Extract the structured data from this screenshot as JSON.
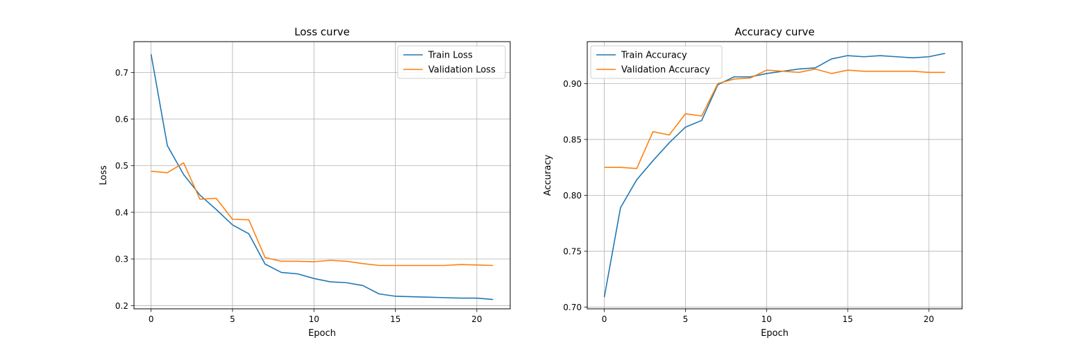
{
  "chart_data": [
    {
      "type": "line",
      "title": "Loss curve",
      "xlabel": "Epoch",
      "ylabel": "Loss",
      "x": [
        0,
        1,
        2,
        3,
        4,
        5,
        6,
        7,
        8,
        9,
        10,
        11,
        12,
        13,
        14,
        15,
        16,
        17,
        18,
        19,
        20,
        21
      ],
      "xlim": [
        -1.05,
        22.05
      ],
      "ylim": [
        0.193,
        0.766
      ],
      "xticks": [
        0,
        5,
        10,
        15,
        20
      ],
      "yticks": [
        0.2,
        0.3,
        0.4,
        0.5,
        0.6,
        0.7
      ],
      "xtick_labels": [
        "0",
        "5",
        "10",
        "15",
        "20"
      ],
      "ytick_labels": [
        "0.2",
        "0.3",
        "0.4",
        "0.5",
        "0.6",
        "0.7"
      ],
      "grid": true,
      "legend_position": "upper right",
      "series": [
        {
          "name": "Train Loss",
          "color": "#1f77b4",
          "values": [
            0.739,
            0.543,
            0.481,
            0.437,
            0.406,
            0.373,
            0.354,
            0.289,
            0.271,
            0.268,
            0.258,
            0.251,
            0.249,
            0.243,
            0.225,
            0.22,
            0.219,
            0.218,
            0.217,
            0.216,
            0.216,
            0.213
          ]
        },
        {
          "name": "Validation Loss",
          "color": "#ff7f0e",
          "values": [
            0.488,
            0.485,
            0.506,
            0.428,
            0.43,
            0.385,
            0.384,
            0.303,
            0.295,
            0.295,
            0.294,
            0.297,
            0.295,
            0.29,
            0.286,
            0.286,
            0.286,
            0.286,
            0.286,
            0.288,
            0.287,
            0.286
          ]
        }
      ]
    },
    {
      "type": "line",
      "title": "Accuracy curve",
      "xlabel": "Epoch",
      "ylabel": "Accuracy",
      "x": [
        0,
        1,
        2,
        3,
        4,
        5,
        6,
        7,
        8,
        9,
        10,
        11,
        12,
        13,
        14,
        15,
        16,
        17,
        18,
        19,
        20,
        21
      ],
      "xlim": [
        -1.05,
        22.05
      ],
      "ylim": [
        0.6985,
        0.9375
      ],
      "xticks": [
        0,
        5,
        10,
        15,
        20
      ],
      "yticks": [
        0.7,
        0.75,
        0.8,
        0.85,
        0.9
      ],
      "xtick_labels": [
        "0",
        "5",
        "10",
        "15",
        "20"
      ],
      "ytick_labels": [
        "0.70",
        "0.75",
        "0.80",
        "0.85",
        "0.90"
      ],
      "grid": true,
      "legend_position": "upper left",
      "series": [
        {
          "name": "Train Accuracy",
          "color": "#1f77b4",
          "values": [
            0.709,
            0.789,
            0.814,
            0.831,
            0.847,
            0.861,
            0.867,
            0.899,
            0.906,
            0.906,
            0.909,
            0.911,
            0.913,
            0.914,
            0.922,
            0.925,
            0.924,
            0.925,
            0.924,
            0.923,
            0.924,
            0.927
          ]
        },
        {
          "name": "Validation Accuracy",
          "color": "#ff7f0e",
          "values": [
            0.825,
            0.825,
            0.824,
            0.857,
            0.854,
            0.873,
            0.871,
            0.9,
            0.904,
            0.905,
            0.912,
            0.911,
            0.91,
            0.913,
            0.909,
            0.912,
            0.911,
            0.911,
            0.911,
            0.911,
            0.91,
            0.91
          ]
        }
      ]
    }
  ]
}
